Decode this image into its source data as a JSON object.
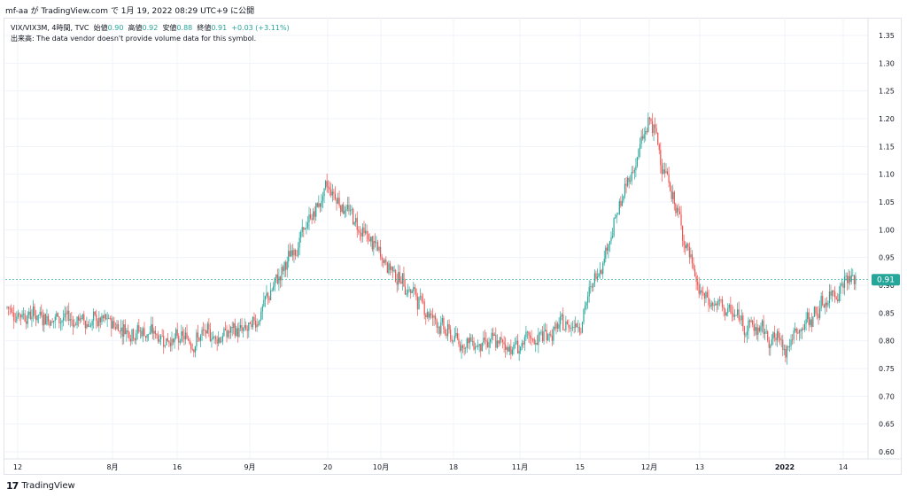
{
  "header": {
    "publish_line": "mf-aa が TradingView.com で 1月 19, 2022 08:29 UTC+9 に公開"
  },
  "legend": {
    "symbol": "VIX/VIX3M, 4時間, TVC",
    "open_label": "始値",
    "open_value": "0.90",
    "high_label": "高値",
    "high_value": "0.92",
    "low_label": "安値",
    "low_value": "0.88",
    "close_label": "終値",
    "close_value": "0.91",
    "change": "+0.03 (+3.11%)",
    "volume_note": "出来高: The data vendor doesn't provide volume data for this symbol."
  },
  "brand": {
    "name": "TradingView",
    "logo_glyph": "17"
  },
  "colors": {
    "up": "#26a69a",
    "down": "#ef5350",
    "price_label_bg": "#26a69a",
    "grid": "#f0f3fa"
  },
  "chart_data": {
    "type": "candlestick",
    "title": "VIX/VIX3M, 4時間, TVC",
    "ylim": [
      0.6,
      1.35
    ],
    "y_ticks": [
      "1.35",
      "1.30",
      "1.25",
      "1.20",
      "1.15",
      "1.10",
      "1.05",
      "1.00",
      "0.95",
      "0.90",
      "0.85",
      "0.80",
      "0.75",
      "0.70",
      "0.65",
      "0.60"
    ],
    "x_ticks": [
      "12",
      "8月",
      "16",
      "9月",
      "20",
      "10月",
      "18",
      "11月",
      "15",
      "12月",
      "13",
      "2022",
      "14"
    ],
    "last_price": "0.91",
    "grid": true,
    "series": [
      {
        "name": "VIX/VIX3M",
        "approx_close_path": [
          {
            "x": "12",
            "y": 0.85
          },
          {
            "x": "8月",
            "y": 0.83
          },
          {
            "x": "16",
            "y": 0.8
          },
          {
            "x": "9月",
            "y": 0.82
          },
          {
            "x": "20",
            "y": 1.08
          },
          {
            "x": "10月",
            "y": 0.95
          },
          {
            "x": "18",
            "y": 0.8
          },
          {
            "x": "11月",
            "y": 0.79
          },
          {
            "x": "15",
            "y": 0.84
          },
          {
            "x": "12月",
            "y": 1.2
          },
          {
            "x": "13",
            "y": 0.88
          },
          {
            "x": "2022",
            "y": 0.79
          },
          {
            "x": "14",
            "y": 0.91
          }
        ]
      }
    ]
  }
}
